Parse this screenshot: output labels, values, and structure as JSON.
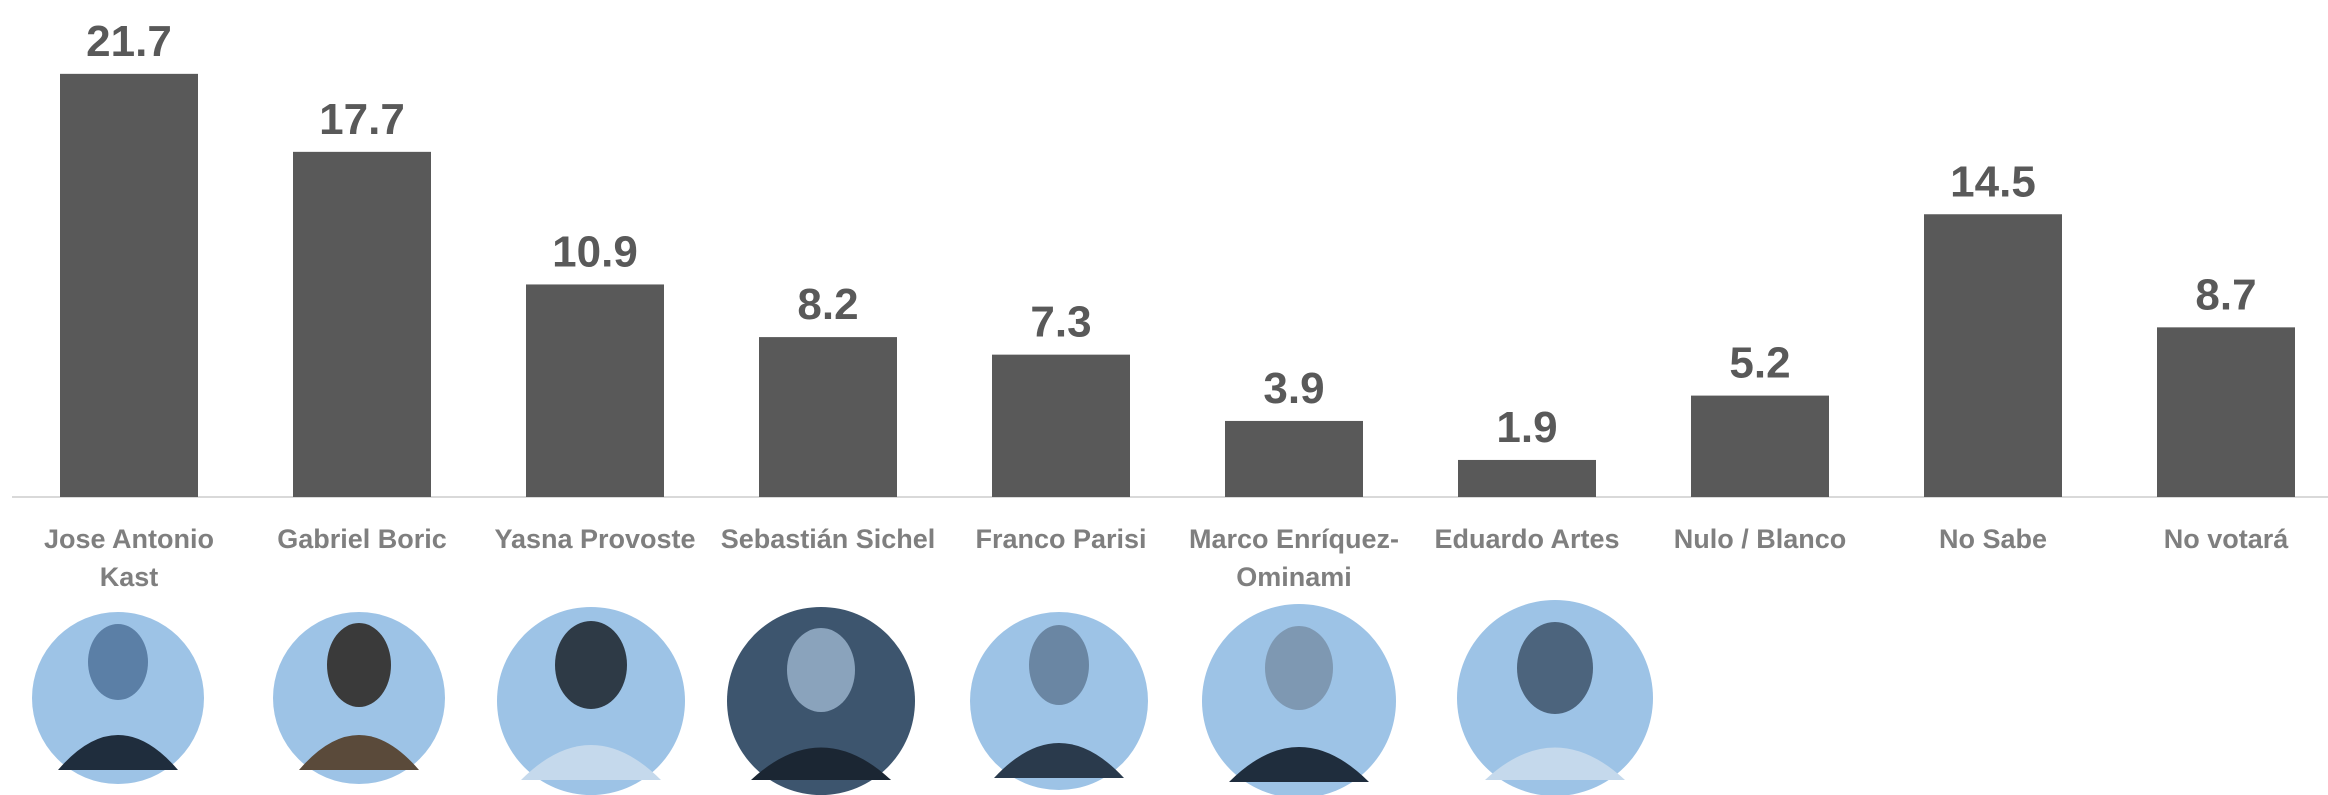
{
  "chart_data": {
    "type": "bar",
    "categories": [
      "Jose Antonio Kast",
      "Gabriel Boric",
      "Yasna Provoste",
      "Sebastián Sichel",
      "Franco Parisi",
      "Marco Enríquez-Ominami",
      "Eduardo Artes",
      "Nulo / Blanco",
      "No Sabe",
      "No votará"
    ],
    "values": [
      21.7,
      17.7,
      10.9,
      8.2,
      7.3,
      3.9,
      1.9,
      5.2,
      14.5,
      8.7
    ],
    "color": "#595959",
    "ylim": [
      0,
      25
    ]
  }
}
